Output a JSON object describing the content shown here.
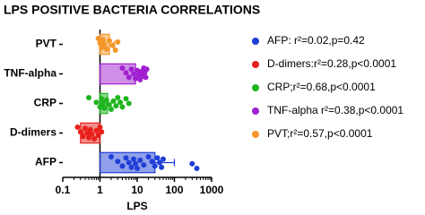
{
  "chart_data": {
    "type": "bar",
    "orientation": "horizontal",
    "title": "LPS POSITIVE BACTERIA CORRELATIONS",
    "xlabel": "LPS",
    "xscale": "log",
    "xlim": [
      0.1,
      1000
    ],
    "xticks": [
      0.1,
      1,
      10,
      100,
      1000
    ],
    "bar_base": 1,
    "categories": [
      "PVT",
      "TNF-alpha",
      "CRP",
      "D-dimers",
      "AFP"
    ],
    "values": [
      1.8,
      9,
      1.6,
      0.3,
      30
    ],
    "errors": [
      0.6,
      3,
      0.4,
      0.05,
      70
    ],
    "colors": [
      "#f5962a",
      "#a020d0",
      "#1fb51f",
      "#e8201c",
      "#1f3fd6"
    ],
    "points": [
      [
        0.9,
        1.0,
        1.1,
        1.2,
        1.3,
        1.5,
        1.8,
        2.2,
        2.6,
        3.0
      ],
      [
        4,
        5,
        6,
        7,
        8,
        9,
        10,
        11,
        12,
        13,
        14,
        15,
        16,
        17,
        18
      ],
      [
        0.5,
        0.8,
        1,
        1.1,
        1.2,
        1.3,
        1.5,
        1.7,
        2,
        2.3,
        2.7,
        3,
        3.5,
        4,
        5,
        6
      ],
      [
        0.25,
        0.3,
        0.35,
        0.4,
        0.45,
        0.5,
        0.55,
        0.6,
        0.7,
        0.8,
        0.9,
        1.0,
        1.1
      ],
      [
        2,
        3,
        4,
        5,
        6,
        7,
        8,
        9,
        10,
        12,
        15,
        20,
        25,
        30,
        35,
        40,
        45,
        50,
        300,
        400
      ]
    ],
    "legend": {
      "position": "right",
      "entries": [
        {
          "name": "AFP: r²=0.02,p=0.42",
          "color": "#1f3fd6"
        },
        {
          "name": "D-dimers:r²=0.28,p<0.0001",
          "color": "#e8201c"
        },
        {
          "name": "CRP;r²=0.68,p<0.0001",
          "color": "#1fb51f"
        },
        {
          "name": "TNF-alpha r²=0.38,p<0.0001",
          "color": "#a020d0"
        },
        {
          "name": "PVT;r²=0.57,p<0.0001",
          "color": "#f5962a"
        }
      ]
    }
  }
}
